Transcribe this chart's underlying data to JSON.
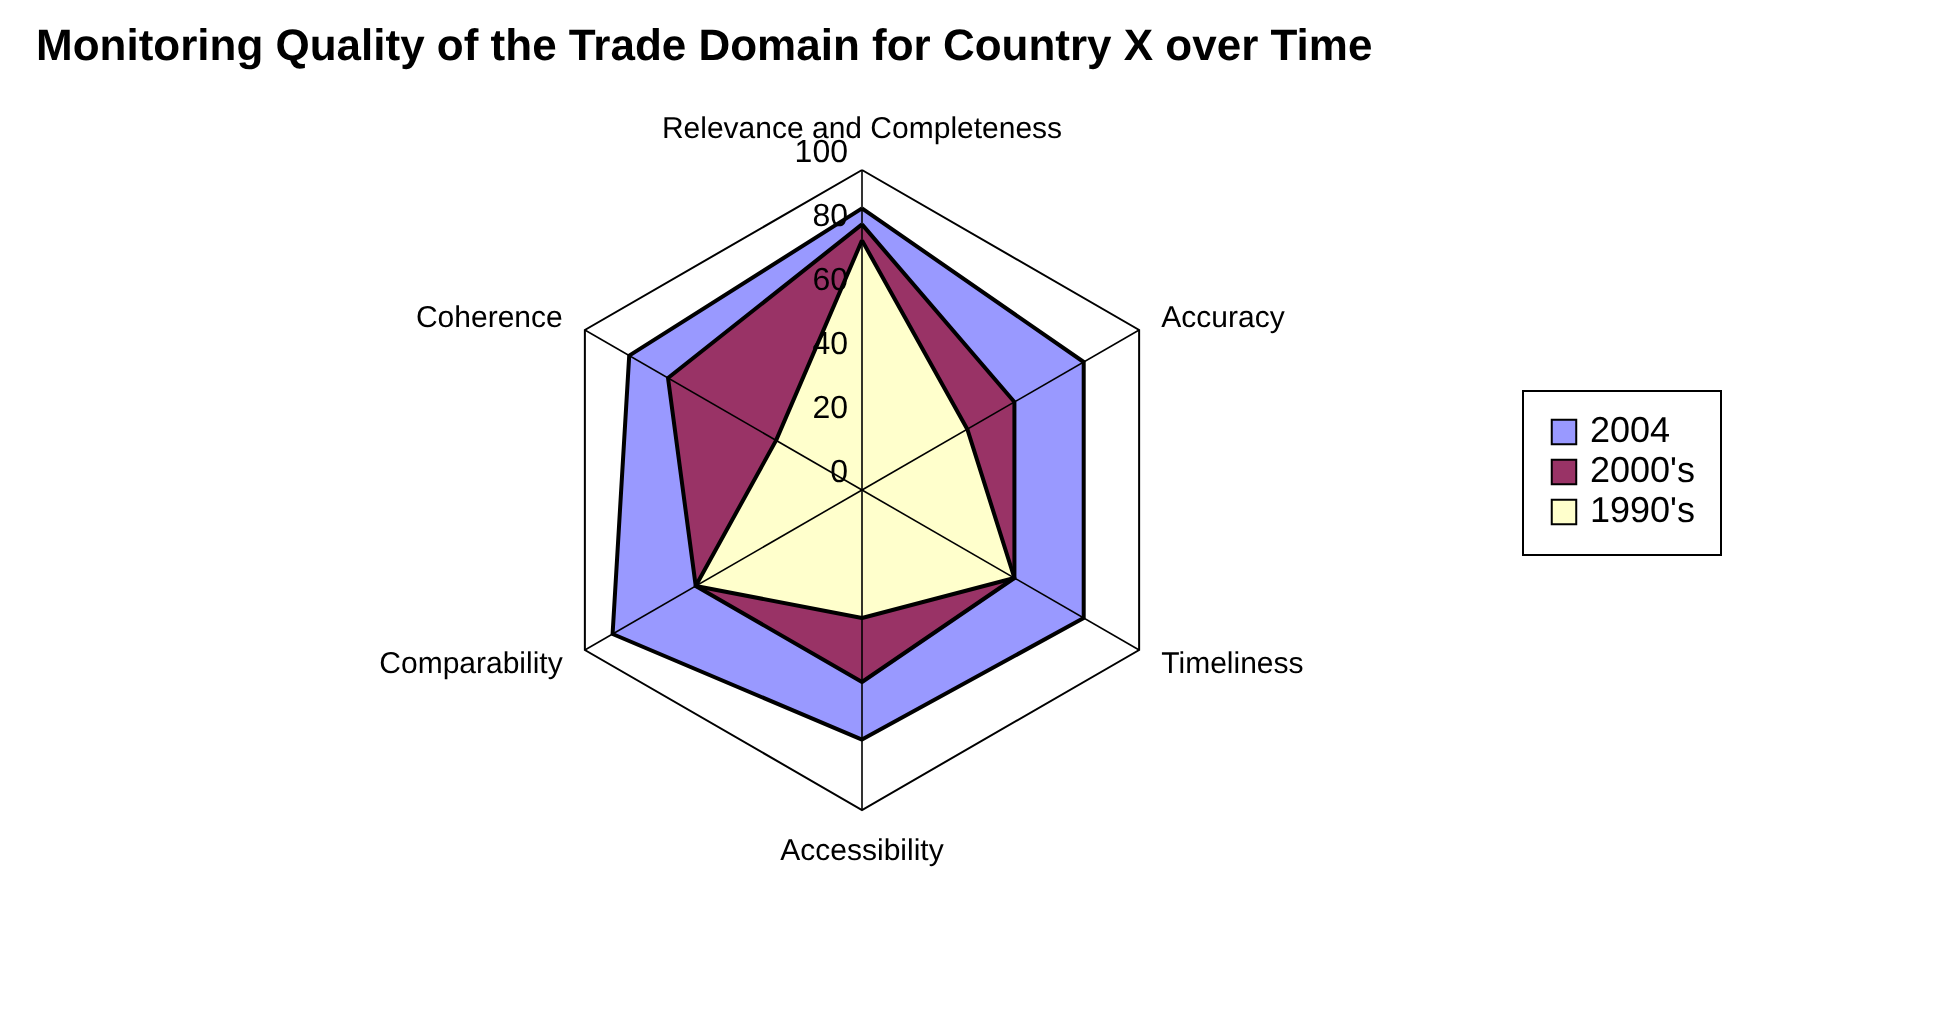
{
  "chart_data": {
    "type": "radar",
    "title": "Monitoring Quality of the Trade Domain  for Country X over Time",
    "categories": [
      "Relevance and Completeness",
      "Accuracy",
      "Timeliness",
      "Accessibility",
      "Comparability",
      "Coherence"
    ],
    "series": [
      {
        "name": "2004",
        "color": "#9999ff",
        "values": [
          88,
          80,
          80,
          78,
          90,
          84
        ]
      },
      {
        "name": "2000's",
        "color": "#993366",
        "values": [
          83,
          55,
          55,
          60,
          60,
          70
        ]
      },
      {
        "name": "1990's",
        "color": "#ffffcc",
        "values": [
          78,
          38,
          55,
          40,
          60,
          31
        ]
      }
    ],
    "ylim": [
      0,
      100
    ],
    "yticks": [
      0,
      20,
      40,
      60,
      80,
      100
    ],
    "legend": "right",
    "grid": true
  }
}
